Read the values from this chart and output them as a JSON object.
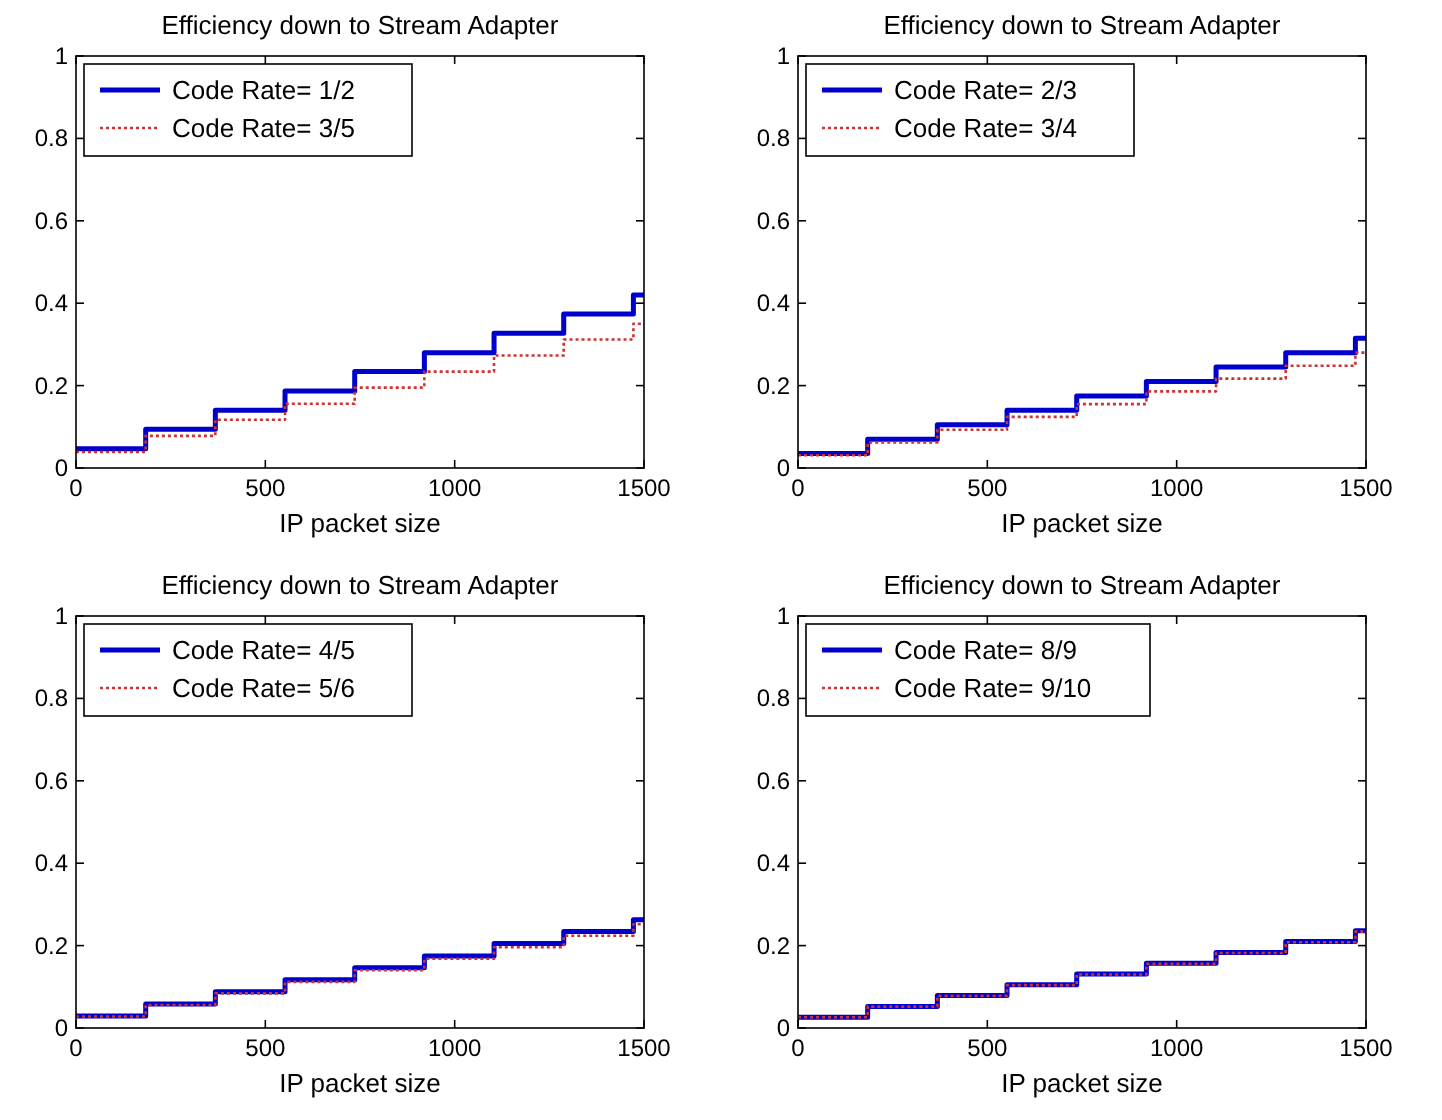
{
  "chart_data": [
    {
      "type": "step",
      "title": "Efficiency down to Stream Adapter",
      "xlabel": "IP packet size",
      "xlim": [
        0,
        1500
      ],
      "xticks": [
        0,
        500,
        1000,
        1500
      ],
      "ylim": [
        0,
        1
      ],
      "yticks": [
        0,
        0.2,
        0.4,
        0.6,
        0.8,
        1
      ],
      "grid": false,
      "legend": "top left",
      "x": [
        0,
        184,
        368,
        552,
        736,
        920,
        1104,
        1288,
        1472,
        1500
      ],
      "series": [
        {
          "name": "Code Rate= 1/2",
          "color": "#0000cc",
          "line_style": "solid",
          "values": [
            0.047,
            0.094,
            0.14,
            0.187,
            0.234,
            0.28,
            0.327,
            0.374,
            0.42,
            0.42
          ]
        },
        {
          "name": "Code Rate= 3/5",
          "color": "#cc3333",
          "line_style": "dotted",
          "values": [
            0.039,
            0.078,
            0.117,
            0.156,
            0.195,
            0.234,
            0.273,
            0.312,
            0.35,
            0.35
          ]
        }
      ]
    },
    {
      "type": "step",
      "title": "Efficiency down to Stream Adapter",
      "xlabel": "IP packet size",
      "xlim": [
        0,
        1500
      ],
      "xticks": [
        0,
        500,
        1000,
        1500
      ],
      "ylim": [
        0,
        1
      ],
      "yticks": [
        0,
        0.2,
        0.4,
        0.6,
        0.8,
        1
      ],
      "grid": false,
      "legend": "top left",
      "x": [
        0,
        184,
        368,
        552,
        736,
        920,
        1104,
        1288,
        1472,
        1500
      ],
      "series": [
        {
          "name": "Code Rate= 2/3",
          "color": "#0000cc",
          "line_style": "solid",
          "values": [
            0.035,
            0.07,
            0.105,
            0.14,
            0.175,
            0.21,
            0.245,
            0.28,
            0.315,
            0.315
          ]
        },
        {
          "name": "Code Rate= 3/4",
          "color": "#cc3333",
          "line_style": "dotted",
          "values": [
            0.031,
            0.062,
            0.093,
            0.124,
            0.155,
            0.186,
            0.217,
            0.248,
            0.28,
            0.28
          ]
        }
      ]
    },
    {
      "type": "step",
      "title": "Efficiency down to Stream Adapter",
      "xlabel": "IP packet size",
      "xlim": [
        0,
        1500
      ],
      "xticks": [
        0,
        500,
        1000,
        1500
      ],
      "ylim": [
        0,
        1
      ],
      "yticks": [
        0,
        0.2,
        0.4,
        0.6,
        0.8,
        1
      ],
      "grid": false,
      "legend": "top left",
      "x": [
        0,
        184,
        368,
        552,
        736,
        920,
        1104,
        1288,
        1472,
        1500
      ],
      "series": [
        {
          "name": "Code Rate= 4/5",
          "color": "#0000cc",
          "line_style": "solid",
          "values": [
            0.029,
            0.058,
            0.088,
            0.117,
            0.146,
            0.175,
            0.205,
            0.234,
            0.263,
            0.263
          ]
        },
        {
          "name": "Code Rate= 5/6",
          "color": "#cc3333",
          "line_style": "dotted",
          "values": [
            0.028,
            0.056,
            0.084,
            0.112,
            0.14,
            0.168,
            0.196,
            0.224,
            0.252,
            0.252
          ]
        }
      ]
    },
    {
      "type": "step",
      "title": "Efficiency down to Stream Adapter",
      "xlabel": "IP packet size",
      "xlim": [
        0,
        1500
      ],
      "xticks": [
        0,
        500,
        1000,
        1500
      ],
      "ylim": [
        0,
        1
      ],
      "yticks": [
        0,
        0.2,
        0.4,
        0.6,
        0.8,
        1
      ],
      "grid": false,
      "legend": "top left",
      "x": [
        0,
        184,
        368,
        552,
        736,
        920,
        1104,
        1288,
        1472,
        1500
      ],
      "series": [
        {
          "name": "Code Rate= 8/9",
          "color": "#0000cc",
          "line_style": "solid",
          "values": [
            0.026,
            0.052,
            0.079,
            0.105,
            0.131,
            0.157,
            0.183,
            0.21,
            0.236,
            0.236
          ]
        },
        {
          "name": "Code Rate= 9/10",
          "color": "#cc3333",
          "line_style": "dotted",
          "values": [
            0.026,
            0.052,
            0.078,
            0.104,
            0.13,
            0.156,
            0.182,
            0.208,
            0.234,
            0.234
          ]
        }
      ]
    }
  ]
}
